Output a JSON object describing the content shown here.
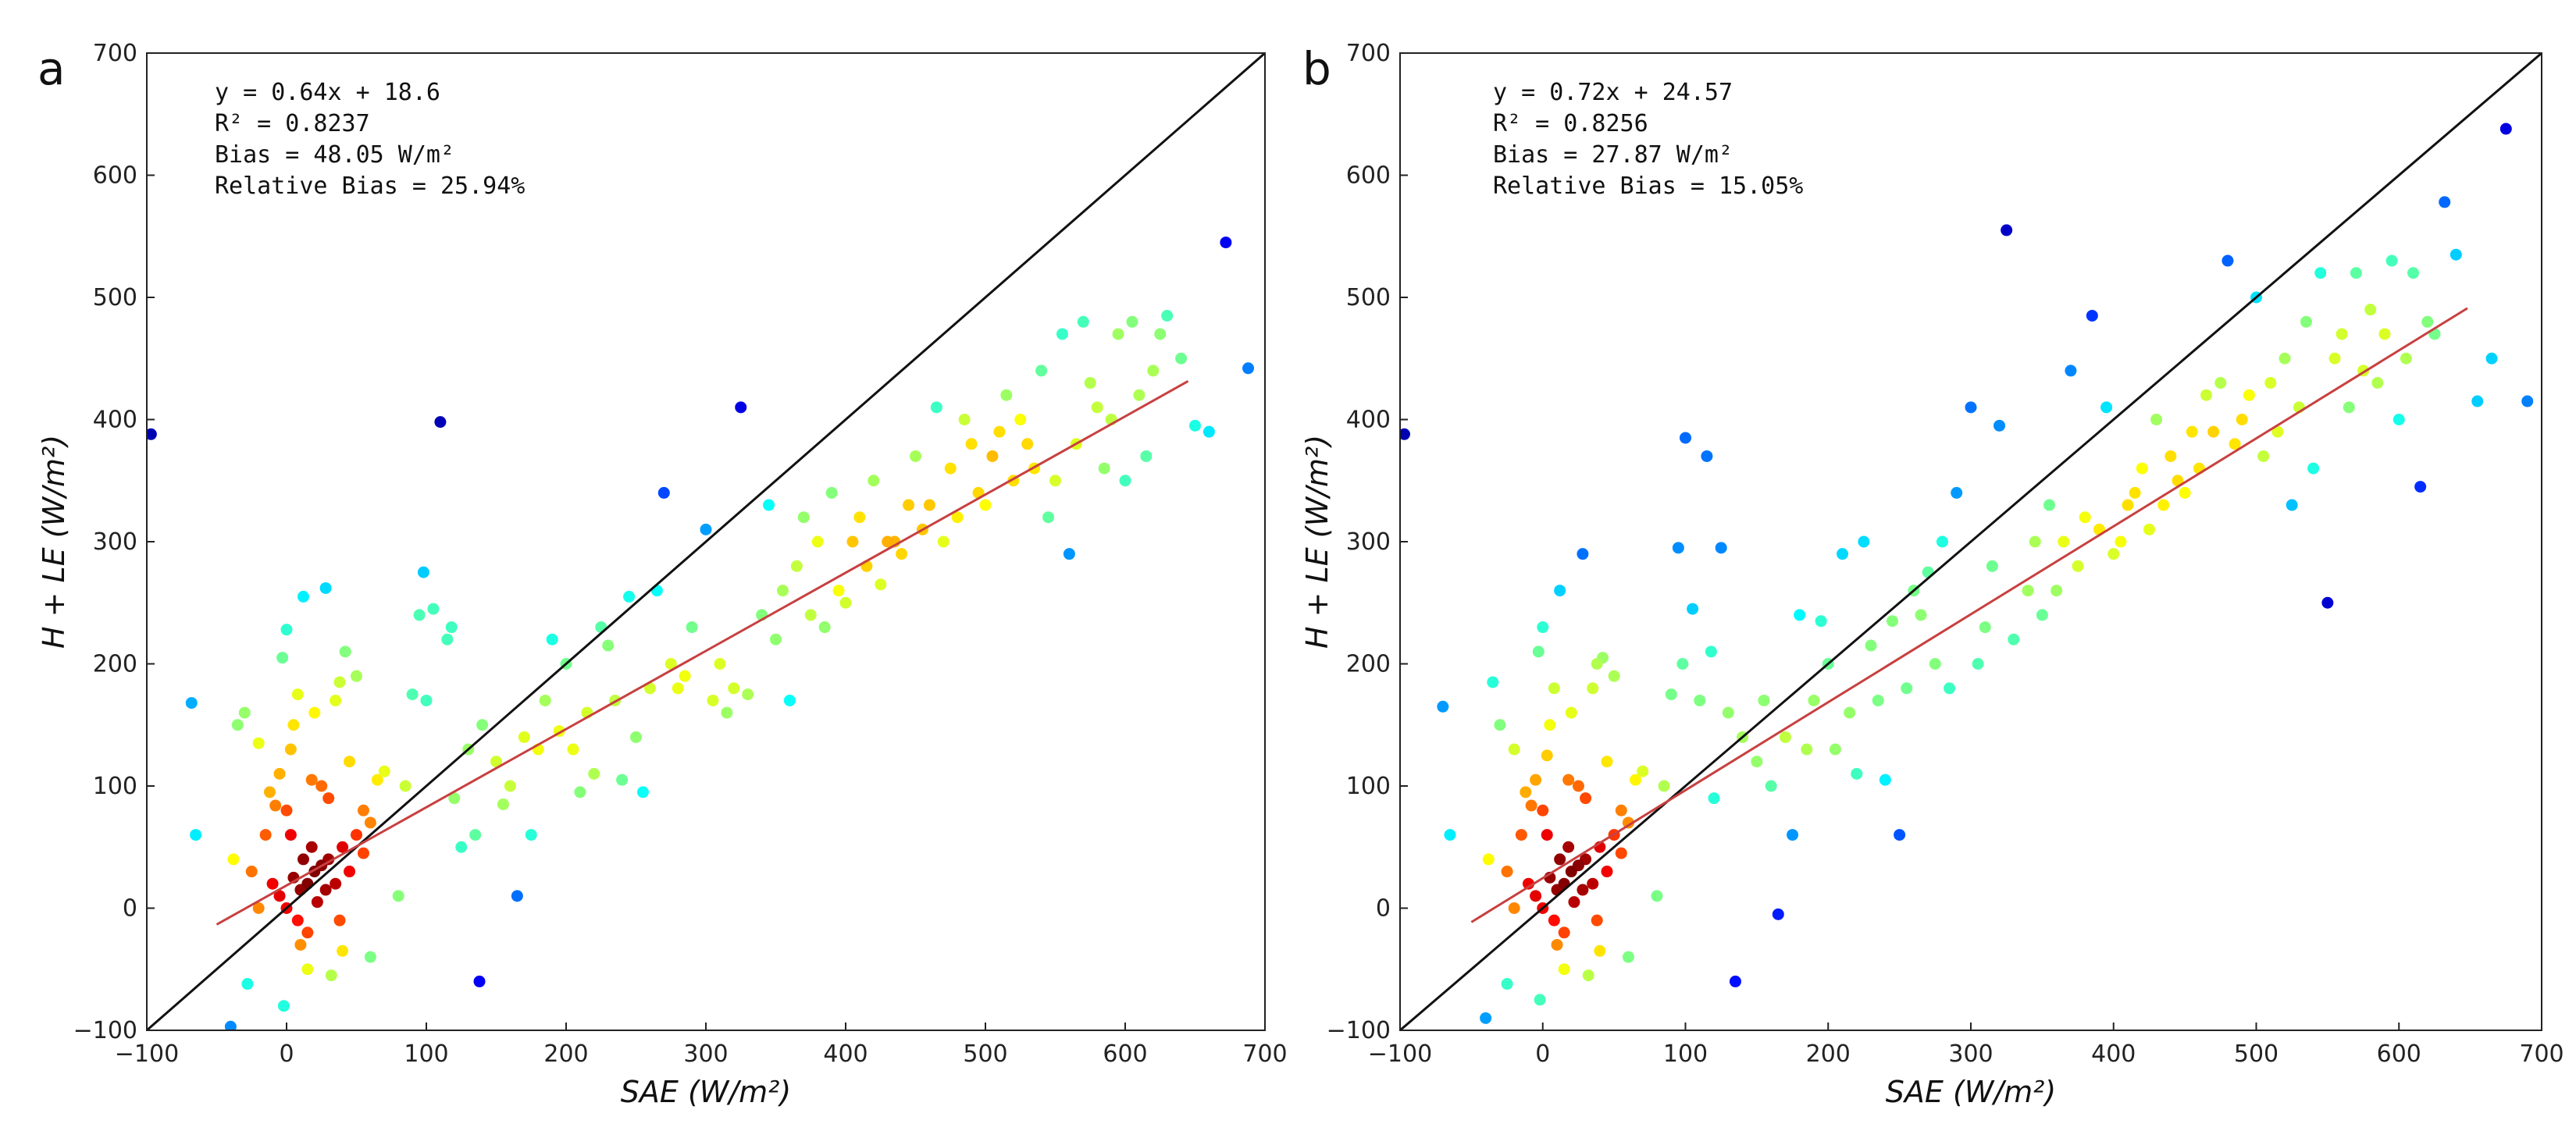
{
  "figure": {
    "panels": [
      "a",
      "b"
    ]
  },
  "chart_data": [
    {
      "panel": "a",
      "type": "scatter",
      "xlabel": "SAE   (W/m²)",
      "ylabel": "H + LE   (W/m²)",
      "xlim": [
        -100,
        700
      ],
      "ylim": [
        -100,
        700
      ],
      "xticks": [
        -100,
        0,
        100,
        200,
        300,
        400,
        500,
        600,
        700
      ],
      "yticks": [
        -100,
        0,
        100,
        200,
        300,
        400,
        500,
        600,
        700
      ],
      "annotations": [
        "y  =  0.64x  +  18.6",
        "R²  =  0.8237",
        "Bias  =  48.05  W/m²",
        "Relative Bias  =  25.94%"
      ],
      "one_to_one_line": {
        "x": [
          -100,
          700
        ],
        "y": [
          -100,
          700
        ],
        "color": "#111111"
      },
      "fit_line": {
        "slope": 0.64,
        "intercept": 18.6,
        "x_range": [
          -50,
          645
        ],
        "color": "#c84040"
      },
      "color_by": "point density (jet colormap)",
      "points": [
        [
          -97,
          388
        ],
        [
          -68,
          168
        ],
        [
          -65,
          60
        ],
        [
          -40,
          -97
        ],
        [
          -38,
          40
        ],
        [
          -35,
          150
        ],
        [
          -30,
          160
        ],
        [
          -28,
          -62
        ],
        [
          -20,
          135
        ],
        [
          -15,
          60
        ],
        [
          -12,
          95
        ],
        [
          -8,
          84
        ],
        [
          -5,
          110
        ],
        [
          -3,
          205
        ],
        [
          -2,
          -80
        ],
        [
          0,
          228
        ],
        [
          3,
          130
        ],
        [
          5,
          150
        ],
        [
          8,
          175
        ],
        [
          10,
          -30
        ],
        [
          12,
          255
        ],
        [
          15,
          -50
        ],
        [
          18,
          105
        ],
        [
          20,
          160
        ],
        [
          25,
          100
        ],
        [
          28,
          262
        ],
        [
          30,
          90
        ],
        [
          32,
          -55
        ],
        [
          35,
          170
        ],
        [
          38,
          185
        ],
        [
          40,
          -35
        ],
        [
          42,
          210
        ],
        [
          45,
          120
        ],
        [
          50,
          190
        ],
        [
          55,
          80
        ],
        [
          60,
          -40
        ],
        [
          65,
          105
        ],
        [
          70,
          112
        ],
        [
          80,
          10
        ],
        [
          85,
          100
        ],
        [
          90,
          175
        ],
        [
          95,
          240
        ],
        [
          98,
          275
        ],
        [
          100,
          170
        ],
        [
          105,
          245
        ],
        [
          110,
          398
        ],
        [
          115,
          220
        ],
        [
          118,
          230
        ],
        [
          120,
          90
        ],
        [
          125,
          50
        ],
        [
          130,
          130
        ],
        [
          135,
          60
        ],
        [
          138,
          -60
        ],
        [
          140,
          150
        ],
        [
          150,
          120
        ],
        [
          155,
          85
        ],
        [
          160,
          100
        ],
        [
          165,
          10
        ],
        [
          170,
          140
        ],
        [
          175,
          60
        ],
        [
          180,
          130
        ],
        [
          185,
          170
        ],
        [
          190,
          220
        ],
        [
          195,
          145
        ],
        [
          200,
          200
        ],
        [
          205,
          130
        ],
        [
          210,
          95
        ],
        [
          215,
          160
        ],
        [
          220,
          110
        ],
        [
          225,
          230
        ],
        [
          230,
          215
        ],
        [
          235,
          170
        ],
        [
          240,
          105
        ],
        [
          245,
          255
        ],
        [
          250,
          140
        ],
        [
          255,
          95
        ],
        [
          260,
          180
        ],
        [
          265,
          260
        ],
        [
          270,
          340
        ],
        [
          275,
          200
        ],
        [
          280,
          180
        ],
        [
          285,
          190
        ],
        [
          290,
          230
        ],
        [
          300,
          310
        ],
        [
          305,
          170
        ],
        [
          310,
          200
        ],
        [
          315,
          160
        ],
        [
          320,
          180
        ],
        [
          325,
          410
        ],
        [
          330,
          175
        ],
        [
          340,
          240
        ],
        [
          345,
          330
        ],
        [
          350,
          220
        ],
        [
          355,
          260
        ],
        [
          360,
          170
        ],
        [
          365,
          280
        ],
        [
          370,
          320
        ],
        [
          375,
          240
        ],
        [
          380,
          300
        ],
        [
          385,
          230
        ],
        [
          390,
          340
        ],
        [
          395,
          260
        ],
        [
          400,
          250
        ],
        [
          405,
          300
        ],
        [
          410,
          320
        ],
        [
          415,
          280
        ],
        [
          420,
          350
        ],
        [
          425,
          265
        ],
        [
          430,
          300
        ],
        [
          435,
          300
        ],
        [
          440,
          290
        ],
        [
          445,
          330
        ],
        [
          450,
          370
        ],
        [
          455,
          310
        ],
        [
          460,
          330
        ],
        [
          465,
          410
        ],
        [
          470,
          300
        ],
        [
          475,
          360
        ],
        [
          480,
          320
        ],
        [
          485,
          400
        ],
        [
          490,
          380
        ],
        [
          495,
          340
        ],
        [
          500,
          330
        ],
        [
          505,
          370
        ],
        [
          510,
          390
        ],
        [
          515,
          420
        ],
        [
          520,
          350
        ],
        [
          525,
          400
        ],
        [
          530,
          380
        ],
        [
          535,
          360
        ],
        [
          540,
          440
        ],
        [
          545,
          320
        ],
        [
          550,
          350
        ],
        [
          555,
          470
        ],
        [
          560,
          290
        ],
        [
          565,
          380
        ],
        [
          570,
          480
        ],
        [
          575,
          430
        ],
        [
          580,
          410
        ],
        [
          585,
          360
        ],
        [
          590,
          400
        ],
        [
          595,
          470
        ],
        [
          600,
          350
        ],
        [
          605,
          480
        ],
        [
          610,
          420
        ],
        [
          615,
          370
        ],
        [
          620,
          440
        ],
        [
          625,
          470
        ],
        [
          630,
          485
        ],
        [
          640,
          450
        ],
        [
          650,
          395
        ],
        [
          660,
          390
        ],
        [
          672,
          545
        ],
        [
          688,
          442
        ],
        [
          15,
          20
        ],
        [
          20,
          30
        ],
        [
          25,
          35
        ],
        [
          10,
          15
        ],
        [
          5,
          25
        ],
        [
          -5,
          10
        ],
        [
          0,
          0
        ],
        [
          30,
          40
        ],
        [
          35,
          20
        ],
        [
          18,
          50
        ],
        [
          8,
          -10
        ],
        [
          22,
          5
        ],
        [
          12,
          40
        ],
        [
          28,
          15
        ],
        [
          3,
          60
        ],
        [
          -10,
          20
        ],
        [
          40,
          50
        ],
        [
          45,
          30
        ],
        [
          50,
          60
        ],
        [
          55,
          45
        ],
        [
          60,
          70
        ],
        [
          -20,
          0
        ],
        [
          -25,
          30
        ],
        [
          0,
          80
        ],
        [
          15,
          -20
        ],
        [
          38,
          -10
        ]
      ]
    },
    {
      "panel": "b",
      "type": "scatter",
      "xlabel": "SAE   (W/m²)",
      "ylabel": "H + LE   (W/m²)",
      "xlim": [
        -100,
        700
      ],
      "ylim": [
        -100,
        700
      ],
      "xticks": [
        -100,
        0,
        100,
        200,
        300,
        400,
        500,
        600,
        700
      ],
      "yticks": [
        -100,
        0,
        100,
        200,
        300,
        400,
        500,
        600,
        700
      ],
      "annotations": [
        "y  =  0.72x  +  24.57",
        "R²  =  0.8256",
        "Bias  =  27.87  W/m²",
        "Relative Bias  =  15.05%"
      ],
      "one_to_one_line": {
        "x": [
          -100,
          700
        ],
        "y": [
          -100,
          700
        ],
        "color": "#111111"
      },
      "fit_line": {
        "slope": 0.72,
        "intercept": 24.57,
        "x_range": [
          -50,
          648
        ],
        "color": "#c84040"
      },
      "color_by": "point density (jet colormap)",
      "points": [
        [
          -97,
          388
        ],
        [
          -70,
          165
        ],
        [
          -65,
          60
        ],
        [
          -40,
          -90
        ],
        [
          -38,
          40
        ],
        [
          -35,
          185
        ],
        [
          -30,
          150
        ],
        [
          -25,
          -62
        ],
        [
          -20,
          130
        ],
        [
          -15,
          60
        ],
        [
          -12,
          95
        ],
        [
          -8,
          84
        ],
        [
          -5,
          105
        ],
        [
          -3,
          210
        ],
        [
          -2,
          -75
        ],
        [
          0,
          230
        ],
        [
          3,
          125
        ],
        [
          5,
          150
        ],
        [
          8,
          180
        ],
        [
          10,
          -30
        ],
        [
          12,
          260
        ],
        [
          15,
          -50
        ],
        [
          18,
          105
        ],
        [
          20,
          160
        ],
        [
          25,
          100
        ],
        [
          28,
          290
        ],
        [
          30,
          90
        ],
        [
          32,
          -55
        ],
        [
          35,
          180
        ],
        [
          38,
          200
        ],
        [
          40,
          -35
        ],
        [
          42,
          205
        ],
        [
          45,
          120
        ],
        [
          50,
          190
        ],
        [
          55,
          80
        ],
        [
          60,
          -40
        ],
        [
          65,
          105
        ],
        [
          70,
          112
        ],
        [
          80,
          10
        ],
        [
          85,
          100
        ],
        [
          90,
          175
        ],
        [
          95,
          295
        ],
        [
          98,
          200
        ],
        [
          100,
          385
        ],
        [
          105,
          245
        ],
        [
          110,
          170
        ],
        [
          115,
          370
        ],
        [
          118,
          210
        ],
        [
          120,
          90
        ],
        [
          125,
          295
        ],
        [
          130,
          160
        ],
        [
          135,
          -60
        ],
        [
          140,
          140
        ],
        [
          150,
          120
        ],
        [
          155,
          170
        ],
        [
          160,
          100
        ],
        [
          165,
          -5
        ],
        [
          170,
          140
        ],
        [
          175,
          60
        ],
        [
          180,
          240
        ],
        [
          185,
          130
        ],
        [
          190,
          170
        ],
        [
          195,
          235
        ],
        [
          200,
          200
        ],
        [
          205,
          130
        ],
        [
          210,
          290
        ],
        [
          215,
          160
        ],
        [
          220,
          110
        ],
        [
          225,
          300
        ],
        [
          230,
          215
        ],
        [
          235,
          170
        ],
        [
          240,
          105
        ],
        [
          245,
          235
        ],
        [
          250,
          60
        ],
        [
          255,
          180
        ],
        [
          260,
          260
        ],
        [
          265,
          240
        ],
        [
          270,
          275
        ],
        [
          275,
          200
        ],
        [
          280,
          300
        ],
        [
          285,
          180
        ],
        [
          290,
          340
        ],
        [
          300,
          410
        ],
        [
          305,
          200
        ],
        [
          310,
          230
        ],
        [
          315,
          280
        ],
        [
          320,
          395
        ],
        [
          325,
          555
        ],
        [
          330,
          220
        ],
        [
          340,
          260
        ],
        [
          345,
          300
        ],
        [
          350,
          240
        ],
        [
          355,
          330
        ],
        [
          360,
          260
        ],
        [
          365,
          300
        ],
        [
          370,
          440
        ],
        [
          375,
          280
        ],
        [
          380,
          320
        ],
        [
          385,
          485
        ],
        [
          390,
          310
        ],
        [
          395,
          410
        ],
        [
          400,
          290
        ],
        [
          405,
          300
        ],
        [
          410,
          330
        ],
        [
          415,
          340
        ],
        [
          420,
          360
        ],
        [
          425,
          310
        ],
        [
          430,
          400
        ],
        [
          435,
          330
        ],
        [
          440,
          370
        ],
        [
          445,
          350
        ],
        [
          450,
          340
        ],
        [
          455,
          390
        ],
        [
          460,
          360
        ],
        [
          465,
          420
        ],
        [
          470,
          390
        ],
        [
          475,
          430
        ],
        [
          480,
          530
        ],
        [
          485,
          380
        ],
        [
          490,
          400
        ],
        [
          495,
          420
        ],
        [
          500,
          500
        ],
        [
          505,
          370
        ],
        [
          510,
          430
        ],
        [
          515,
          390
        ],
        [
          520,
          450
        ],
        [
          525,
          330
        ],
        [
          530,
          410
        ],
        [
          535,
          480
        ],
        [
          540,
          360
        ],
        [
          545,
          520
        ],
        [
          550,
          250
        ],
        [
          555,
          450
        ],
        [
          560,
          470
        ],
        [
          565,
          410
        ],
        [
          570,
          520
        ],
        [
          575,
          440
        ],
        [
          580,
          490
        ],
        [
          585,
          430
        ],
        [
          590,
          470
        ],
        [
          595,
          530
        ],
        [
          600,
          400
        ],
        [
          605,
          450
        ],
        [
          610,
          520
        ],
        [
          615,
          345
        ],
        [
          620,
          480
        ],
        [
          625,
          470
        ],
        [
          632,
          578
        ],
        [
          640,
          535
        ],
        [
          655,
          415
        ],
        [
          665,
          450
        ],
        [
          675,
          638
        ],
        [
          690,
          415
        ],
        [
          15,
          20
        ],
        [
          20,
          30
        ],
        [
          25,
          35
        ],
        [
          10,
          15
        ],
        [
          5,
          25
        ],
        [
          -5,
          10
        ],
        [
          0,
          0
        ],
        [
          30,
          40
        ],
        [
          35,
          20
        ],
        [
          18,
          50
        ],
        [
          8,
          -10
        ],
        [
          22,
          5
        ],
        [
          12,
          40
        ],
        [
          28,
          15
        ],
        [
          3,
          60
        ],
        [
          -10,
          20
        ],
        [
          40,
          50
        ],
        [
          45,
          30
        ],
        [
          50,
          60
        ],
        [
          55,
          45
        ],
        [
          60,
          70
        ],
        [
          -20,
          0
        ],
        [
          -25,
          30
        ],
        [
          0,
          80
        ],
        [
          15,
          -20
        ],
        [
          38,
          -10
        ]
      ]
    }
  ]
}
